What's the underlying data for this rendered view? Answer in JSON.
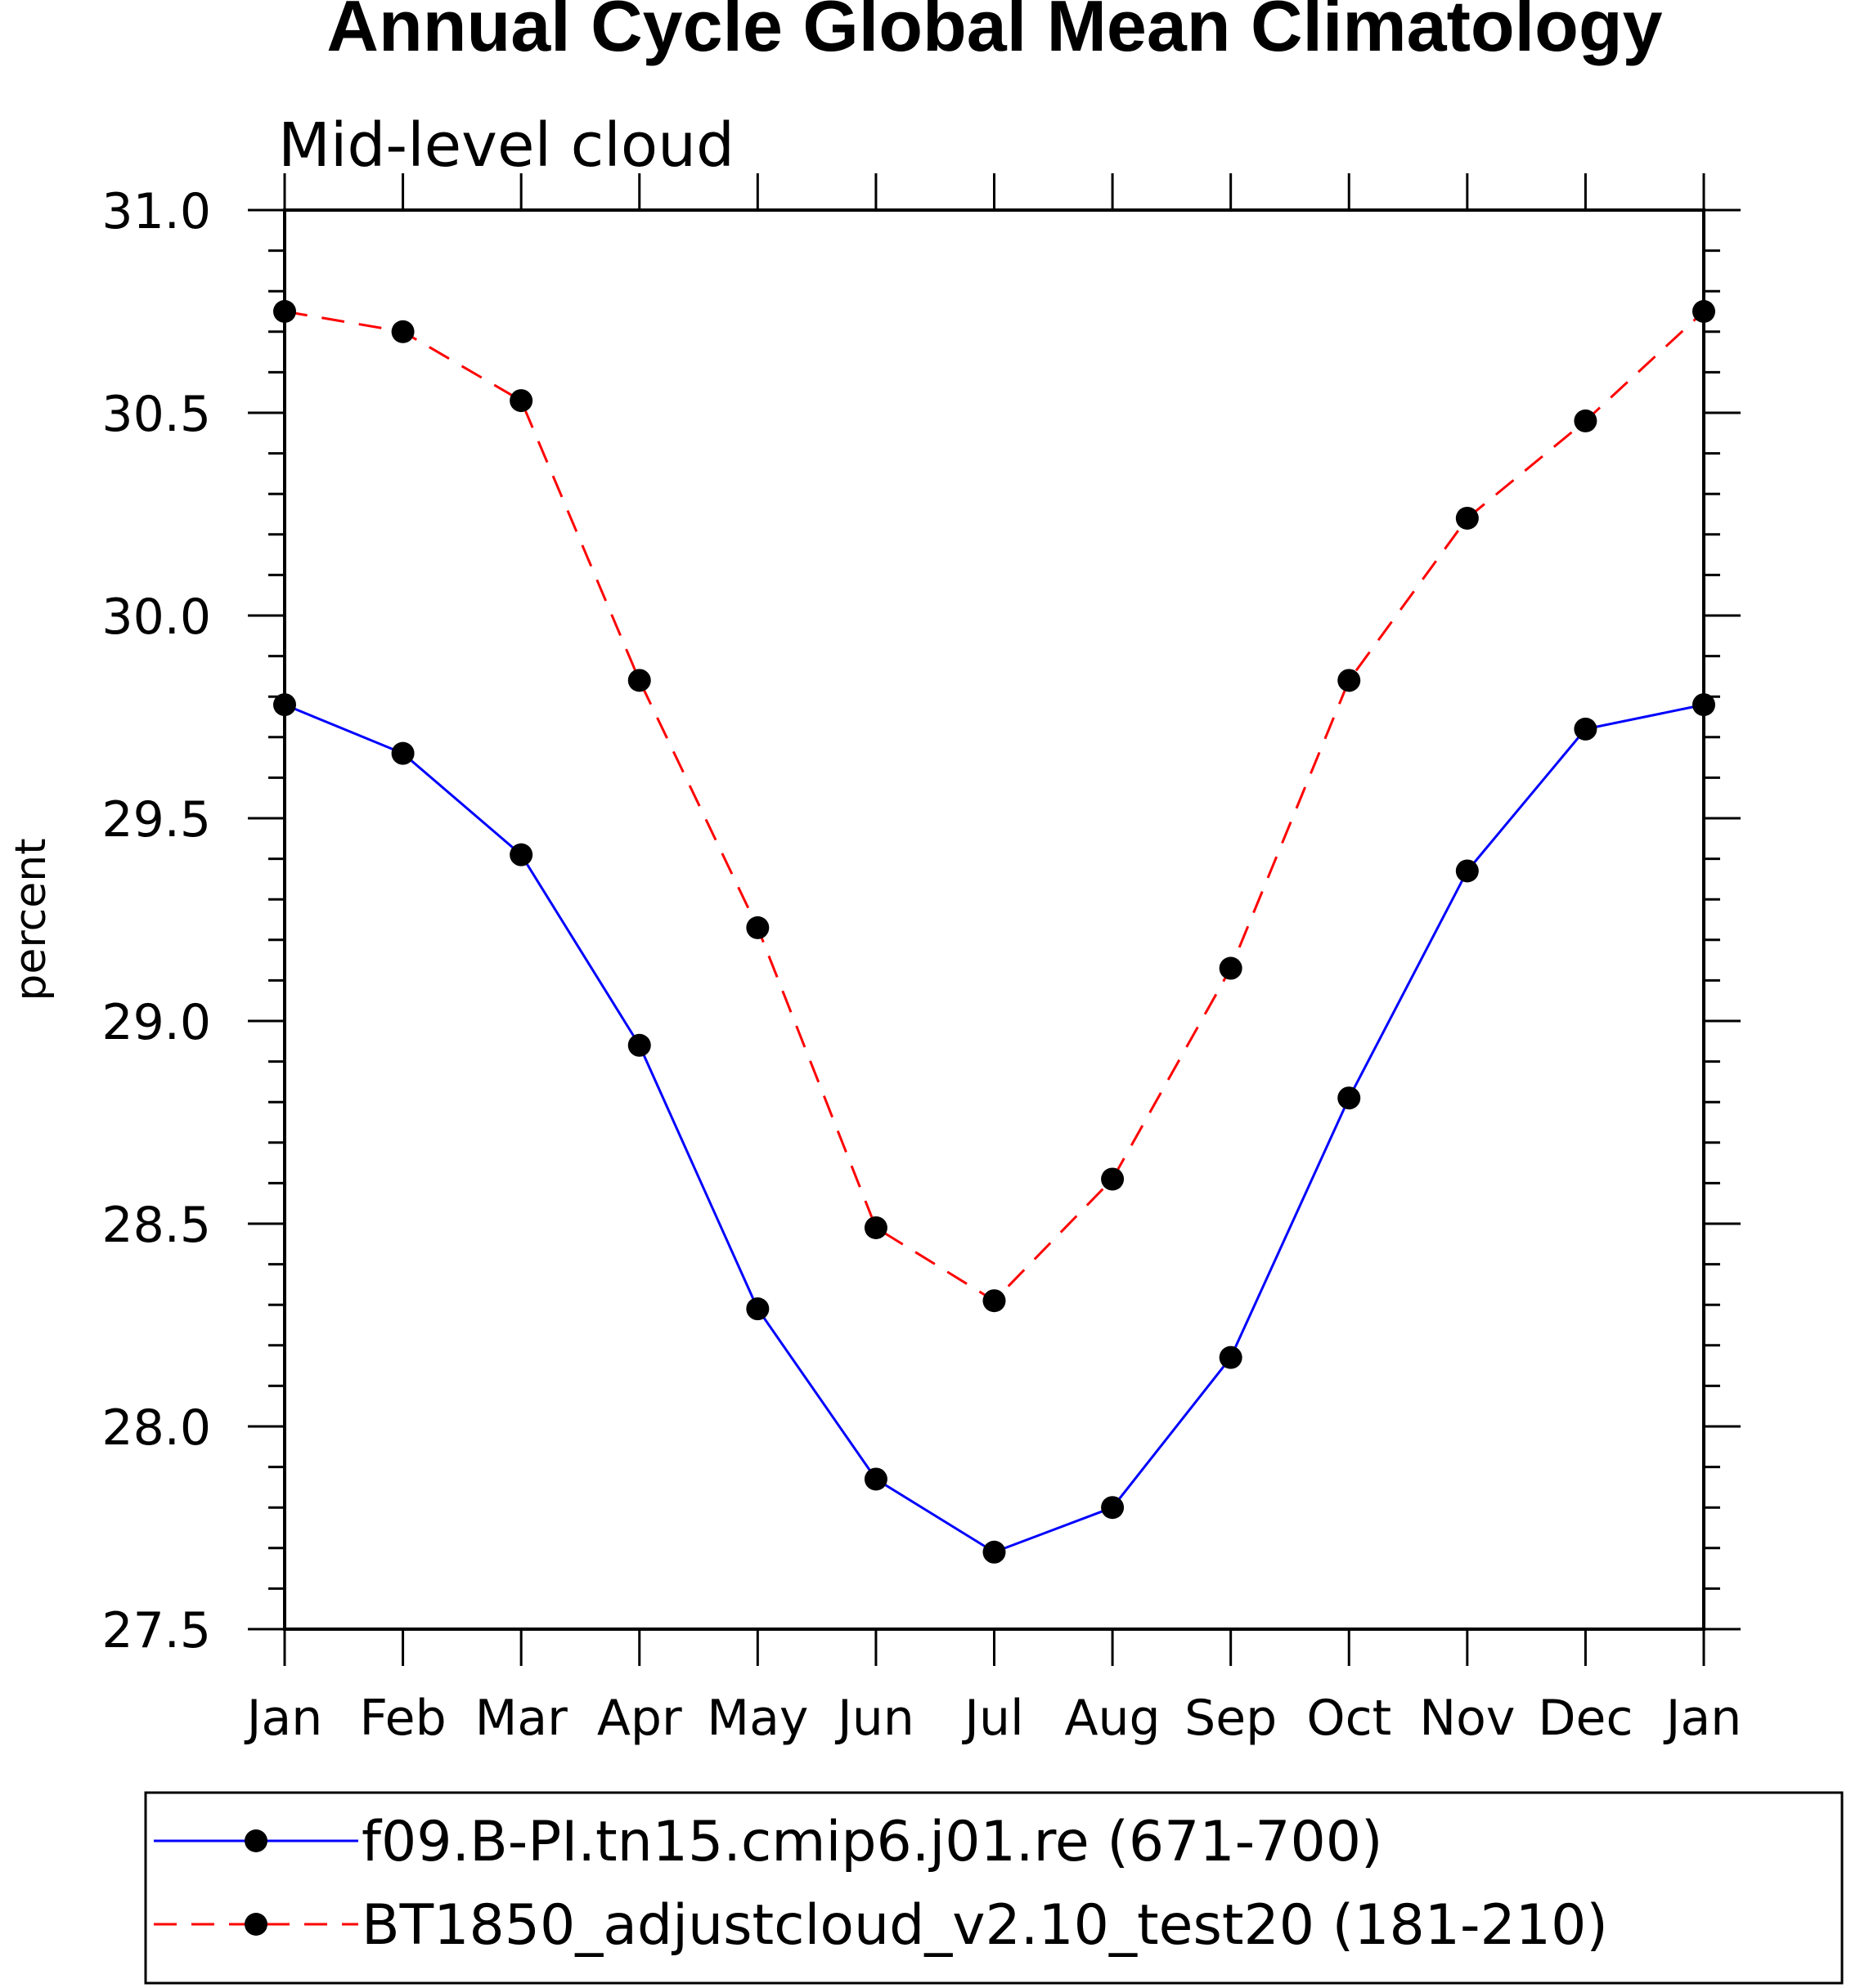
{
  "chart_data": {
    "type": "line",
    "title": "Annual Cycle Global Mean Climatology",
    "subtitle": "Mid-level cloud",
    "xlabel": "",
    "ylabel": "percent",
    "categories": [
      "Jan",
      "Feb",
      "Mar",
      "Apr",
      "May",
      "Jun",
      "Jul",
      "Aug",
      "Sep",
      "Oct",
      "Nov",
      "Dec",
      "Jan"
    ],
    "ylim": [
      27.5,
      31.0
    ],
    "yticks": [
      "27.5",
      "28.0",
      "28.5",
      "29.0",
      "29.5",
      "30.0",
      "30.5",
      "31.0"
    ],
    "series": [
      {
        "name": "f09.B-PI.tn15.cmip6.j01.re (671-700)",
        "color": "#0000ff",
        "dash": "solid",
        "marker": "filled-circle",
        "values": [
          29.78,
          29.66,
          29.41,
          28.94,
          28.29,
          27.87,
          27.69,
          27.8,
          28.17,
          28.81,
          29.37,
          29.72,
          29.78
        ]
      },
      {
        "name": "BT1850_adjustcloud_v2.10_test20 (181-210)",
        "color": "#ff0000",
        "dash": "dashed",
        "marker": "filled-circle",
        "values": [
          30.75,
          30.7,
          30.53,
          29.84,
          29.23,
          28.49,
          28.31,
          28.61,
          29.13,
          29.84,
          30.24,
          30.48,
          30.75
        ]
      }
    ],
    "legend_position": "bottom"
  }
}
